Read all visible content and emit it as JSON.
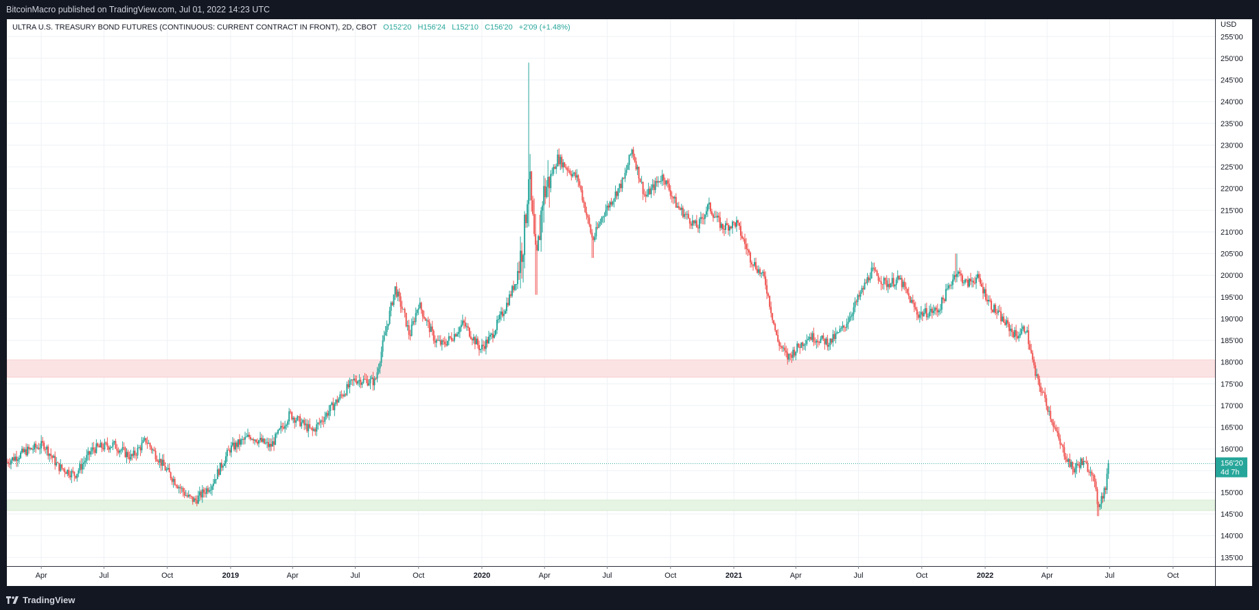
{
  "header": {
    "published_text": "BitcoinMacro published on TradingView.com, Jul 01, 2022 14:23 UTC"
  },
  "footer": {
    "brand": "TradingView"
  },
  "legend": {
    "symbol": "ULTRA U.S. TREASURY BOND FUTURES (CONTINUOUS: CURRENT CONTRACT IN FRONT), 2D, CBOT",
    "open": "O152'20",
    "high": "H156'24",
    "low": "L152'10",
    "close": "C156'20",
    "change": "+2'09 (+1.48%)"
  },
  "price_tag": {
    "price": "156'20",
    "countdown": "4d 7h"
  },
  "colors": {
    "up": "#26a69a",
    "down": "#ef5350",
    "resistance_zone": "#fbe3e4",
    "support_zone": "#e6f4e4",
    "background": "#131722"
  },
  "chart_data": {
    "type": "candlestick",
    "currency": "USD",
    "ylim": [
      133,
      259
    ],
    "y_ticks": [
      "255'00",
      "250'00",
      "245'00",
      "240'00",
      "235'00",
      "230'00",
      "225'00",
      "220'00",
      "215'00",
      "210'00",
      "205'00",
      "200'00",
      "195'00",
      "190'00",
      "185'00",
      "180'00",
      "175'00",
      "170'00",
      "165'00",
      "160'00",
      "155'00",
      "150'00",
      "145'00",
      "140'00",
      "135'00"
    ],
    "y_tick_values": [
      255,
      250,
      245,
      240,
      235,
      230,
      225,
      220,
      215,
      210,
      205,
      200,
      195,
      190,
      185,
      180,
      175,
      170,
      165,
      160,
      155,
      150,
      145,
      140,
      135
    ],
    "x_ticks": [
      {
        "label": "Apr",
        "date": "2018-04-01",
        "bold": false
      },
      {
        "label": "Jul",
        "date": "2018-07-01",
        "bold": false
      },
      {
        "label": "Oct",
        "date": "2018-10-01",
        "bold": false
      },
      {
        "label": "2019",
        "date": "2019-01-01",
        "bold": true
      },
      {
        "label": "Apr",
        "date": "2019-04-01",
        "bold": false
      },
      {
        "label": "Jul",
        "date": "2019-07-01",
        "bold": false
      },
      {
        "label": "Oct",
        "date": "2019-10-01",
        "bold": false
      },
      {
        "label": "2020",
        "date": "2020-01-01",
        "bold": true
      },
      {
        "label": "Apr",
        "date": "2020-04-01",
        "bold": false
      },
      {
        "label": "Jul",
        "date": "2020-07-01",
        "bold": false
      },
      {
        "label": "Oct",
        "date": "2020-10-01",
        "bold": false
      },
      {
        "label": "2021",
        "date": "2021-01-01",
        "bold": true
      },
      {
        "label": "Apr",
        "date": "2021-04-01",
        "bold": false
      },
      {
        "label": "Jul",
        "date": "2021-07-01",
        "bold": false
      },
      {
        "label": "Oct",
        "date": "2021-10-01",
        "bold": false
      },
      {
        "label": "2022",
        "date": "2022-01-01",
        "bold": true
      },
      {
        "label": "Apr",
        "date": "2022-04-01",
        "bold": false
      },
      {
        "label": "Jul",
        "date": "2022-07-01",
        "bold": false
      },
      {
        "label": "Oct",
        "date": "2022-10-01",
        "bold": false
      }
    ],
    "x_range": [
      "2018-02-10",
      "2022-12-01"
    ],
    "last_price": 156.625,
    "zones": [
      {
        "name": "resistance",
        "from": 176.5,
        "to": 180.5
      },
      {
        "name": "support",
        "from": 145.8,
        "to": 148.2
      }
    ],
    "path": [
      [
        "2018-02-10",
        157.0
      ],
      [
        "2018-03-10",
        159.5
      ],
      [
        "2018-04-05",
        161.0
      ],
      [
        "2018-04-25",
        156.0
      ],
      [
        "2018-05-20",
        154.0
      ],
      [
        "2018-06-15",
        160.0
      ],
      [
        "2018-07-15",
        161.0
      ],
      [
        "2018-08-10",
        158.0
      ],
      [
        "2018-08-31",
        162.0
      ],
      [
        "2018-09-30",
        155.0
      ],
      [
        "2018-10-30",
        149.0
      ],
      [
        "2018-11-10",
        148.0
      ],
      [
        "2018-12-05",
        152.0
      ],
      [
        "2018-12-31",
        160.0
      ],
      [
        "2019-01-30",
        163.0
      ],
      [
        "2019-02-28",
        160.5
      ],
      [
        "2019-03-28",
        168.0
      ],
      [
        "2019-04-30",
        164.0
      ],
      [
        "2019-05-30",
        170.0
      ],
      [
        "2019-06-30",
        176.0
      ],
      [
        "2019-07-30",
        175.5
      ],
      [
        "2019-08-10",
        184.0
      ],
      [
        "2019-08-28",
        197.0
      ],
      [
        "2019-09-10",
        191.0
      ],
      [
        "2019-09-18",
        186.0
      ],
      [
        "2019-10-01",
        193.5
      ],
      [
        "2019-10-25",
        185.0
      ],
      [
        "2019-11-05",
        184.0
      ],
      [
        "2019-11-20",
        186.0
      ],
      [
        "2019-12-05",
        189.0
      ],
      [
        "2019-12-30",
        183.0
      ],
      [
        "2020-01-15",
        186.0
      ],
      [
        "2020-02-05",
        193.0
      ],
      [
        "2020-02-20",
        199.0
      ],
      [
        "2020-03-03",
        210.0
      ],
      [
        "2020-03-09",
        224.0
      ],
      [
        "2020-03-20",
        201.0
      ],
      [
        "2020-03-29",
        218.0
      ],
      [
        "2020-04-20",
        227.0
      ],
      [
        "2020-05-20",
        222.0
      ],
      [
        "2020-06-10",
        208.0
      ],
      [
        "2020-06-25",
        214.0
      ],
      [
        "2020-07-25",
        222.0
      ],
      [
        "2020-08-06",
        229.0
      ],
      [
        "2020-08-25",
        218.0
      ],
      [
        "2020-09-20",
        223.0
      ],
      [
        "2020-10-10",
        216.0
      ],
      [
        "2020-11-09",
        211.0
      ],
      [
        "2020-11-25",
        216.0
      ],
      [
        "2020-12-15",
        211.0
      ],
      [
        "2021-01-05",
        212.0
      ],
      [
        "2021-01-25",
        204.0
      ],
      [
        "2021-02-15",
        199.0
      ],
      [
        "2021-03-05",
        185.0
      ],
      [
        "2021-03-20",
        181.0
      ],
      [
        "2021-04-20",
        186.0
      ],
      [
        "2021-05-20",
        184.5
      ],
      [
        "2021-06-10",
        188.0
      ],
      [
        "2021-07-05",
        196.0
      ],
      [
        "2021-07-20",
        201.0
      ],
      [
        "2021-08-10",
        198.0
      ],
      [
        "2021-08-30",
        199.0
      ],
      [
        "2021-09-25",
        191.0
      ],
      [
        "2021-10-25",
        192.0
      ],
      [
        "2021-11-20",
        201.0
      ],
      [
        "2021-12-05",
        198.0
      ],
      [
        "2021-12-20",
        199.5
      ],
      [
        "2022-01-10",
        193.0
      ],
      [
        "2022-01-30",
        189.0
      ],
      [
        "2022-02-15",
        186.0
      ],
      [
        "2022-03-01",
        188.0
      ],
      [
        "2022-03-15",
        177.0
      ],
      [
        "2022-03-30",
        171.0
      ],
      [
        "2022-04-20",
        161.0
      ],
      [
        "2022-05-09",
        155.0
      ],
      [
        "2022-05-20",
        157.0
      ],
      [
        "2022-06-05",
        155.0
      ],
      [
        "2022-06-14",
        147.0
      ],
      [
        "2022-06-25",
        151.0
      ],
      [
        "2022-06-30",
        156.6
      ]
    ]
  }
}
